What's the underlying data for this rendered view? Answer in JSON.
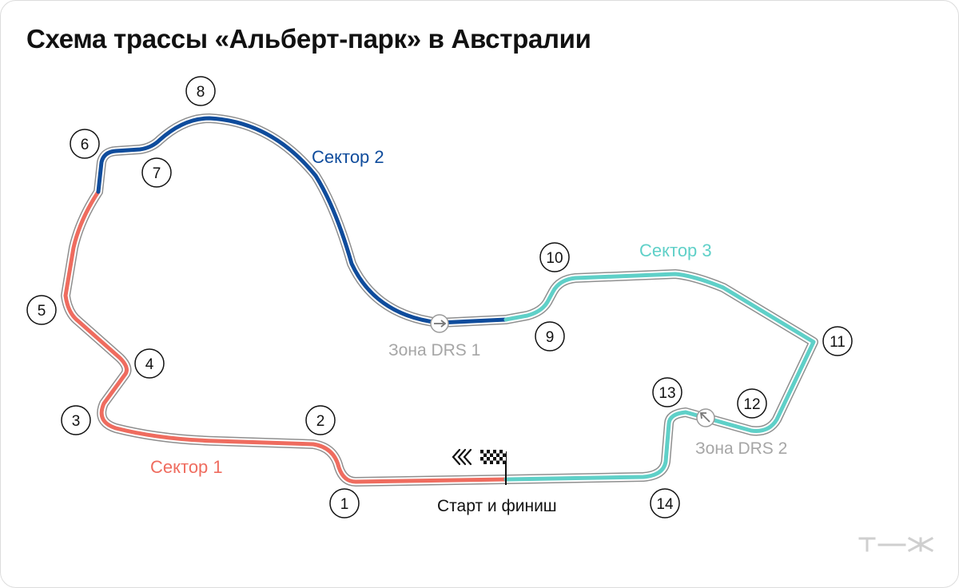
{
  "title": "Схема трассы «Альберт-парк» в Австралии",
  "sectors": [
    {
      "label": "Сектор 1",
      "color": "#ef6c5f"
    },
    {
      "label": "Сектор 2",
      "color": "#0f4c9c"
    },
    {
      "label": "Сектор 3",
      "color": "#5fd0c8"
    }
  ],
  "drs_zones": [
    {
      "label": "Зона DRS 1"
    },
    {
      "label": "Зона DRS 2"
    }
  ],
  "start_finish": {
    "label": "Старт и финиш"
  },
  "turns": [
    "1",
    "2",
    "3",
    "4",
    "5",
    "6",
    "7",
    "8",
    "9",
    "10",
    "11",
    "12",
    "13",
    "14"
  ],
  "colors": {
    "track_outline": "#8f8f8f",
    "drs_marker": "#9a9a9a",
    "logo": "#cfcfcf"
  },
  "logo": "т—ж"
}
